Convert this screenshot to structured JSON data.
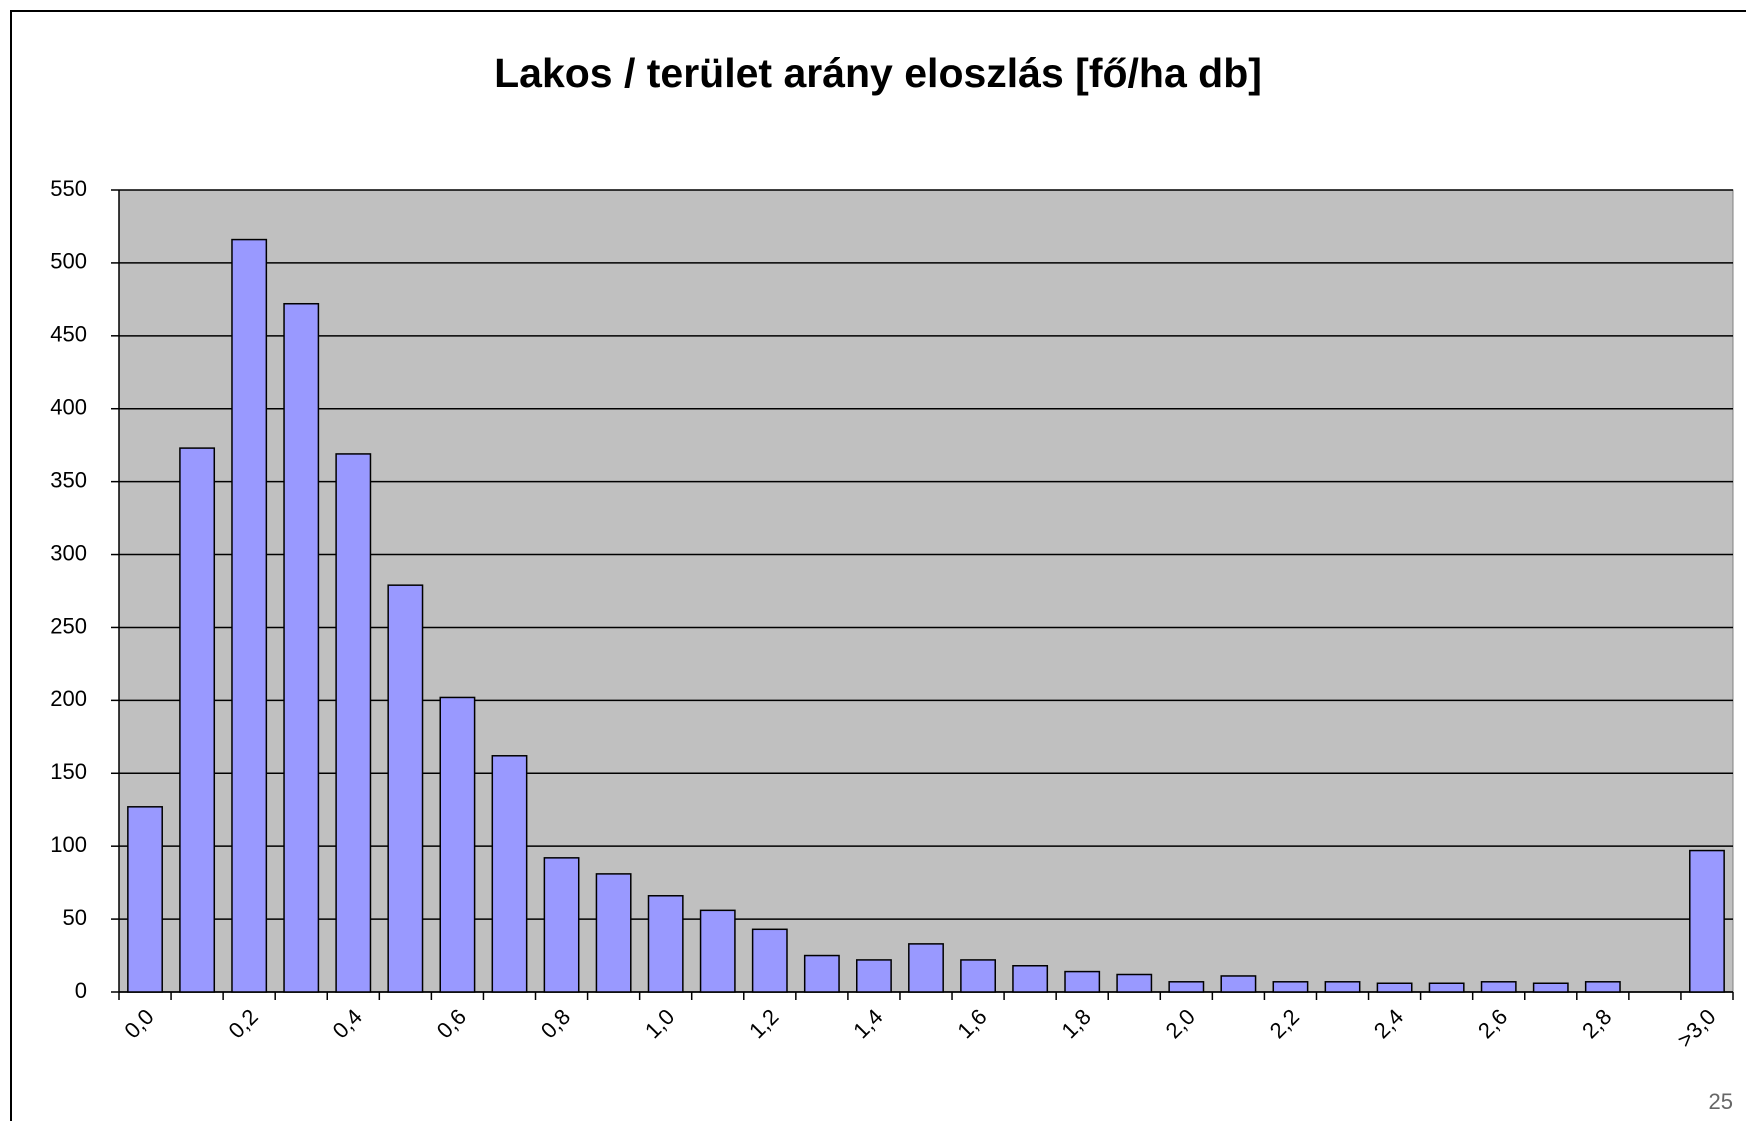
{
  "chart_data": {
    "type": "bar",
    "title": "Lakos / terület arány eloszlás [fő/ha db]",
    "categories": [
      "0,0",
      null,
      "0,2",
      null,
      "0,4",
      null,
      "0,6",
      null,
      "0,8",
      null,
      "1,0",
      null,
      "1,2",
      null,
      "1,4",
      null,
      "1,6",
      null,
      "1,8",
      null,
      "2,0",
      null,
      "2,2",
      null,
      "2,4",
      null,
      "2,6",
      null,
      "2,8",
      null,
      ">3,0"
    ],
    "values": [
      127,
      373,
      516,
      472,
      369,
      279,
      202,
      162,
      92,
      81,
      66,
      56,
      43,
      25,
      22,
      33,
      22,
      18,
      14,
      12,
      7,
      11,
      7,
      7,
      6,
      6,
      7,
      6,
      7,
      0,
      97
    ],
    "color": "#9999ff",
    "ylim": [
      0,
      550
    ],
    "yticks": [
      0,
      50,
      100,
      150,
      200,
      250,
      300,
      350,
      400,
      450,
      500,
      550
    ],
    "grid": true
  },
  "page_number": "25"
}
